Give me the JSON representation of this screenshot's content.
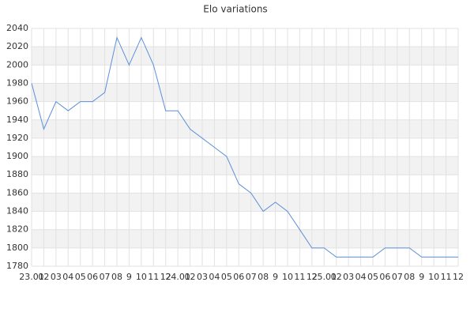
{
  "chart_data": {
    "type": "line",
    "title": "Elo variations",
    "categories": [
      "23.01",
      "02",
      "03",
      "04",
      "05",
      "06",
      "07",
      "08",
      "9",
      "10",
      "11",
      "12",
      "24.01",
      "02",
      "03",
      "04",
      "05",
      "06",
      "07",
      "08",
      "9",
      "10",
      "11",
      "12",
      "25.01",
      "02",
      "03",
      "04",
      "05",
      "06",
      "07",
      "08",
      "9",
      "10",
      "11",
      "12"
    ],
    "series": [
      {
        "name": "Elo",
        "color": "#5b8fd9",
        "values": [
          1980,
          1930,
          1960,
          1950,
          1960,
          1960,
          1970,
          2030,
          2000,
          2030,
          2000,
          1950,
          1950,
          1930,
          1920,
          1910,
          1900,
          1870,
          1860,
          1840,
          1850,
          1840,
          1820,
          1800,
          1800,
          1790,
          1790,
          1790,
          1790,
          1800,
          1800,
          1800,
          1790,
          1790,
          1790,
          1790
        ]
      }
    ],
    "ylim": [
      1780,
      2040
    ],
    "yticks": [
      1780,
      1800,
      1820,
      1840,
      1860,
      1880,
      1900,
      1920,
      1940,
      1960,
      1980,
      2000,
      2020,
      2040
    ],
    "grid": true,
    "legend": false
  }
}
